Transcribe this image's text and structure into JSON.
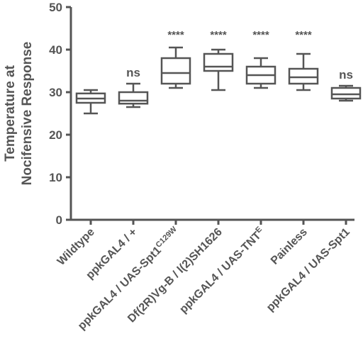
{
  "chart_data": {
    "type": "box",
    "title": "",
    "ylabel_lines": [
      "Temperature at",
      "Nocifensive Response"
    ],
    "xlabel": "",
    "ylim": [
      0,
      50
    ],
    "yticks": [
      "0",
      "10",
      "20",
      "30",
      "40",
      "50"
    ],
    "grid": false,
    "legend": "none",
    "categories": [
      {
        "label": "Wildtype",
        "sup": ""
      },
      {
        "label": "ppkGAL4 / +",
        "sup": ""
      },
      {
        "label": "ppkGAL4 / UAS-Spt1",
        "sup": "C129W"
      },
      {
        "label": "Df(2R)Vg-B / l(2)SH1626",
        "sup": ""
      },
      {
        "label": "ppkGAL4 / UAS-TNT",
        "sup": "E"
      },
      {
        "label": "Painless",
        "sup": ""
      },
      {
        "label": "ppkGAL4 / UAS-Spt1",
        "sup": ""
      }
    ],
    "boxes": [
      {
        "min": 25.0,
        "q1": 27.5,
        "median": 28.5,
        "q3": 29.7,
        "max": 30.5,
        "annotation": ""
      },
      {
        "min": 26.5,
        "q1": 27.3,
        "median": 28.0,
        "q3": 30.0,
        "max": 32.0,
        "annotation": "ns"
      },
      {
        "min": 31.0,
        "q1": 32.0,
        "median": 34.5,
        "q3": 38.0,
        "max": 40.5,
        "annotation": "****"
      },
      {
        "min": 30.5,
        "q1": 35.0,
        "median": 36.0,
        "q3": 39.0,
        "max": 40.0,
        "annotation": "****"
      },
      {
        "min": 31.0,
        "q1": 32.0,
        "median": 34.0,
        "q3": 36.0,
        "max": 38.0,
        "annotation": "****"
      },
      {
        "min": 30.5,
        "q1": 32.0,
        "median": 33.5,
        "q3": 35.5,
        "max": 39.0,
        "annotation": "****"
      },
      {
        "min": 28.0,
        "q1": 28.5,
        "median": 29.5,
        "q3": 31.0,
        "max": 31.5,
        "annotation": "ns"
      }
    ]
  }
}
